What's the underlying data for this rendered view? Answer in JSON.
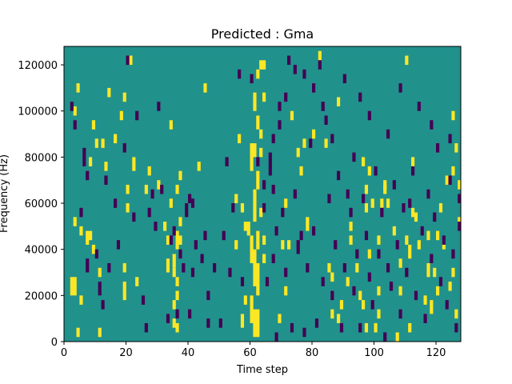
{
  "chart_data": {
    "type": "heatmap",
    "title": "Predicted : Gma",
    "xlabel": "Time step",
    "ylabel": "Frequency (Hz)",
    "xlim": [
      0,
      128
    ],
    "ylim": [
      0,
      128000
    ],
    "xticks": [
      0,
      20,
      40,
      60,
      80,
      100,
      120
    ],
    "yticks": [
      0,
      20000,
      40000,
      60000,
      80000,
      100000,
      120000
    ],
    "xtick_labels": [
      "0",
      "20",
      "40",
      "60",
      "80",
      "100",
      "120"
    ],
    "ytick_labels": [
      "0",
      "20000",
      "40000",
      "60000",
      "80000",
      "100000",
      "120000"
    ],
    "grid": false,
    "colors": {
      "background": "#21918c",
      "high": "#fde725",
      "low": "#440154"
    },
    "cell_width": 1,
    "cell_height": 2000,
    "high_cells": [
      [
        61,
        2000,
        14000
      ],
      [
        62,
        2000,
        14000
      ],
      [
        60,
        8000,
        20000
      ],
      [
        62,
        20000,
        34000
      ],
      [
        61,
        24000,
        40000
      ],
      [
        60,
        34000,
        46000
      ],
      [
        62,
        40000,
        48000
      ],
      [
        59,
        46000,
        52000
      ],
      [
        61,
        52000,
        66000
      ],
      [
        62,
        66000,
        74000
      ],
      [
        60,
        74000,
        86000
      ],
      [
        61,
        80000,
        86000
      ],
      [
        62,
        92000,
        98000
      ],
      [
        61,
        100000,
        108000
      ],
      [
        62,
        114000,
        118000
      ],
      [
        4,
        2000,
        6000
      ],
      [
        2,
        20000,
        28000
      ],
      [
        3,
        20000,
        28000
      ],
      [
        5,
        16000,
        20000
      ],
      [
        11,
        2000,
        6000
      ],
      [
        11,
        28000,
        32000
      ],
      [
        9,
        38000,
        42000
      ],
      [
        7,
        42000,
        48000
      ],
      [
        3,
        50000,
        54000
      ],
      [
        5,
        46000,
        50000
      ],
      [
        8,
        44000,
        48000
      ],
      [
        10,
        84000,
        88000
      ],
      [
        12,
        84000,
        88000
      ],
      [
        8,
        76000,
        80000
      ],
      [
        9,
        92000,
        96000
      ],
      [
        13,
        74000,
        78000
      ],
      [
        18,
        96000,
        100000
      ],
      [
        19,
        104000,
        108000
      ],
      [
        16,
        86000,
        90000
      ],
      [
        4,
        108000,
        112000
      ],
      [
        3,
        98000,
        102000
      ],
      [
        14,
        106000,
        110000
      ],
      [
        19,
        18000,
        26000
      ],
      [
        19,
        30000,
        34000
      ],
      [
        20,
        56000,
        60000
      ],
      [
        20,
        64000,
        68000
      ],
      [
        21,
        120000,
        124000
      ],
      [
        22,
        74000,
        80000
      ],
      [
        23,
        24000,
        28000
      ],
      [
        26,
        64000,
        68000
      ],
      [
        27,
        72000,
        76000
      ],
      [
        30,
        66000,
        70000
      ],
      [
        32,
        48000,
        52000
      ],
      [
        33,
        30000,
        36000
      ],
      [
        33,
        42000,
        46000
      ],
      [
        34,
        58000,
        62000
      ],
      [
        34,
        92000,
        96000
      ],
      [
        35,
        6000,
        10000
      ],
      [
        35,
        14000,
        18000
      ],
      [
        36,
        4000,
        8000
      ],
      [
        36,
        18000,
        22000
      ],
      [
        35,
        28000,
        32000
      ],
      [
        35,
        32000,
        38000
      ],
      [
        36,
        24000,
        28000
      ],
      [
        36,
        40000,
        48000
      ],
      [
        37,
        42000,
        46000
      ],
      [
        36,
        64000,
        68000
      ],
      [
        37,
        70000,
        74000
      ],
      [
        37,
        50000,
        54000
      ],
      [
        43,
        74000,
        78000
      ],
      [
        45,
        108000,
        112000
      ],
      [
        55,
        40000,
        44000
      ],
      [
        55,
        60000,
        64000
      ],
      [
        56,
        86000,
        90000
      ],
      [
        57,
        56000,
        60000
      ],
      [
        58,
        48000,
        52000
      ],
      [
        57,
        6000,
        12000
      ],
      [
        58,
        16000,
        20000
      ],
      [
        63,
        54000,
        58000
      ],
      [
        63,
        80000,
        84000
      ],
      [
        63,
        88000,
        92000
      ],
      [
        64,
        34000,
        38000
      ],
      [
        64,
        42000,
        46000
      ],
      [
        64,
        104000,
        108000
      ],
      [
        63,
        118000,
        122000
      ],
      [
        64,
        118000,
        122000
      ],
      [
        69,
        8000,
        12000
      ],
      [
        70,
        40000,
        44000
      ],
      [
        71,
        58000,
        62000
      ],
      [
        71,
        20000,
        24000
      ],
      [
        72,
        40000,
        44000
      ],
      [
        73,
        96000,
        100000
      ],
      [
        75,
        80000,
        84000
      ],
      [
        76,
        72000,
        76000
      ],
      [
        77,
        84000,
        88000
      ],
      [
        78,
        48000,
        54000
      ],
      [
        80,
        88000,
        92000
      ],
      [
        82,
        122000,
        126000
      ],
      [
        84,
        84000,
        88000
      ],
      [
        86,
        10000,
        14000
      ],
      [
        88,
        102000,
        106000
      ],
      [
        85,
        30000,
        34000
      ],
      [
        86,
        26000,
        30000
      ],
      [
        88,
        8000,
        12000
      ],
      [
        91,
        24000,
        28000
      ],
      [
        92,
        48000,
        52000
      ],
      [
        94,
        30000,
        34000
      ],
      [
        95,
        18000,
        22000
      ],
      [
        96,
        14000,
        18000
      ],
      [
        97,
        56000,
        60000
      ],
      [
        97,
        64000,
        68000
      ],
      [
        96,
        76000,
        80000
      ],
      [
        98,
        72000,
        76000
      ],
      [
        99,
        58000,
        62000
      ],
      [
        100,
        4000,
        8000
      ],
      [
        101,
        10000,
        14000
      ],
      [
        101,
        42000,
        46000
      ],
      [
        103,
        66000,
        70000
      ],
      [
        103,
        64000,
        68000
      ],
      [
        104,
        58000,
        62000
      ],
      [
        106,
        46000,
        50000
      ],
      [
        107,
        0,
        4000
      ],
      [
        108,
        32000,
        36000
      ],
      [
        108,
        20000,
        24000
      ],
      [
        110,
        42000,
        46000
      ],
      [
        111,
        36000,
        42000
      ],
      [
        110,
        120000,
        124000
      ],
      [
        111,
        4000,
        8000
      ],
      [
        112,
        76000,
        80000
      ],
      [
        112,
        54000,
        58000
      ],
      [
        114,
        40000,
        44000
      ],
      [
        116,
        16000,
        20000
      ],
      [
        117,
        28000,
        34000
      ],
      [
        117,
        44000,
        48000
      ],
      [
        118,
        12000,
        18000
      ],
      [
        119,
        28000,
        32000
      ],
      [
        120,
        20000,
        24000
      ],
      [
        121,
        56000,
        60000
      ],
      [
        123,
        68000,
        72000
      ],
      [
        124,
        22000,
        26000
      ],
      [
        125,
        28000,
        32000
      ],
      [
        125,
        96000,
        100000
      ],
      [
        126,
        82000,
        86000
      ],
      [
        126,
        10000,
        14000
      ],
      [
        127,
        66000,
        70000
      ],
      [
        127,
        50000,
        54000
      ],
      [
        120,
        44000,
        48000
      ],
      [
        122,
        40000,
        44000
      ],
      [
        113,
        52000,
        56000
      ],
      [
        102,
        58000,
        62000
      ],
      [
        98,
        36000,
        40000
      ],
      [
        97,
        4000,
        8000
      ],
      [
        92,
        42000,
        46000
      ],
      [
        89,
        14000,
        18000
      ],
      [
        101,
        20000,
        24000
      ],
      [
        125,
        72000,
        76000
      ]
    ],
    "low_cells": [
      [
        2,
        100000,
        104000
      ],
      [
        3,
        92000,
        96000
      ],
      [
        5,
        54000,
        58000
      ],
      [
        6,
        76000,
        84000
      ],
      [
        7,
        70000,
        74000
      ],
      [
        7,
        30000,
        36000
      ],
      [
        10,
        36000,
        40000
      ],
      [
        11,
        20000,
        26000
      ],
      [
        12,
        14000,
        18000
      ],
      [
        13,
        68000,
        72000
      ],
      [
        14,
        30000,
        34000
      ],
      [
        16,
        58000,
        62000
      ],
      [
        17,
        40000,
        44000
      ],
      [
        19,
        82000,
        86000
      ],
      [
        20,
        120000,
        124000
      ],
      [
        22,
        52000,
        56000
      ],
      [
        23,
        96000,
        100000
      ],
      [
        25,
        16000,
        20000
      ],
      [
        26,
        4000,
        8000
      ],
      [
        27,
        54000,
        58000
      ],
      [
        28,
        62000,
        66000
      ],
      [
        29,
        48000,
        52000
      ],
      [
        30,
        100000,
        104000
      ],
      [
        31,
        64000,
        68000
      ],
      [
        33,
        8000,
        12000
      ],
      [
        34,
        42000,
        46000
      ],
      [
        35,
        46000,
        50000
      ],
      [
        36,
        10000,
        14000
      ],
      [
        37,
        36000,
        40000
      ],
      [
        38,
        30000,
        34000
      ],
      [
        39,
        54000,
        60000
      ],
      [
        40,
        60000,
        64000
      ],
      [
        40,
        10000,
        14000
      ],
      [
        41,
        58000,
        62000
      ],
      [
        41,
        28000,
        32000
      ],
      [
        42,
        40000,
        44000
      ],
      [
        44,
        34000,
        38000
      ],
      [
        45,
        44000,
        48000
      ],
      [
        46,
        6000,
        10000
      ],
      [
        46,
        18000,
        22000
      ],
      [
        48,
        30000,
        34000
      ],
      [
        50,
        6000,
        10000
      ],
      [
        51,
        44000,
        48000
      ],
      [
        52,
        76000,
        80000
      ],
      [
        53,
        28000,
        32000
      ],
      [
        54,
        56000,
        60000
      ],
      [
        56,
        114000,
        118000
      ],
      [
        57,
        24000,
        28000
      ],
      [
        60,
        112000,
        116000
      ],
      [
        62,
        76000,
        80000
      ],
      [
        64,
        56000,
        60000
      ],
      [
        65,
        24000,
        28000
      ],
      [
        66,
        72000,
        78000
      ],
      [
        67,
        34000,
        38000
      ],
      [
        67,
        64000,
        68000
      ],
      [
        68,
        46000,
        50000
      ],
      [
        68,
        0,
        4000
      ],
      [
        69,
        100000,
        104000
      ],
      [
        70,
        54000,
        58000
      ],
      [
        71,
        28000,
        32000
      ],
      [
        72,
        120000,
        124000
      ],
      [
        73,
        4000,
        8000
      ],
      [
        74,
        62000,
        66000
      ],
      [
        75,
        38000,
        44000
      ],
      [
        76,
        44000,
        48000
      ],
      [
        77,
        2000,
        6000
      ],
      [
        78,
        30000,
        34000
      ],
      [
        79,
        84000,
        88000
      ],
      [
        80,
        46000,
        50000
      ],
      [
        81,
        6000,
        10000
      ],
      [
        82,
        118000,
        122000
      ],
      [
        83,
        24000,
        28000
      ],
      [
        84,
        94000,
        98000
      ],
      [
        85,
        60000,
        64000
      ],
      [
        86,
        18000,
        22000
      ],
      [
        87,
        40000,
        44000
      ],
      [
        88,
        70000,
        74000
      ],
      [
        89,
        4000,
        8000
      ],
      [
        90,
        30000,
        34000
      ],
      [
        91,
        62000,
        66000
      ],
      [
        92,
        54000,
        58000
      ],
      [
        93,
        20000,
        24000
      ],
      [
        94,
        36000,
        40000
      ],
      [
        95,
        4000,
        8000
      ],
      [
        96,
        60000,
        64000
      ],
      [
        97,
        44000,
        48000
      ],
      [
        98,
        26000,
        30000
      ],
      [
        99,
        14000,
        18000
      ],
      [
        100,
        72000,
        76000
      ],
      [
        101,
        36000,
        40000
      ],
      [
        102,
        54000,
        58000
      ],
      [
        103,
        0,
        4000
      ],
      [
        104,
        30000,
        34000
      ],
      [
        105,
        22000,
        26000
      ],
      [
        106,
        66000,
        70000
      ],
      [
        107,
        40000,
        44000
      ],
      [
        108,
        10000,
        14000
      ],
      [
        109,
        56000,
        60000
      ],
      [
        110,
        28000,
        32000
      ],
      [
        111,
        58000,
        62000
      ],
      [
        113,
        18000,
        22000
      ],
      [
        114,
        100000,
        104000
      ],
      [
        115,
        46000,
        50000
      ],
      [
        116,
        8000,
        12000
      ],
      [
        117,
        62000,
        66000
      ],
      [
        118,
        34000,
        38000
      ],
      [
        119,
        52000,
        56000
      ],
      [
        120,
        82000,
        86000
      ],
      [
        121,
        24000,
        28000
      ],
      [
        122,
        42000,
        46000
      ],
      [
        123,
        14000,
        18000
      ],
      [
        124,
        68000,
        72000
      ],
      [
        125,
        36000,
        40000
      ],
      [
        126,
        4000,
        8000
      ],
      [
        127,
        60000,
        64000
      ],
      [
        127,
        48000,
        52000
      ],
      [
        124,
        86000,
        90000
      ],
      [
        118,
        92000,
        96000
      ],
      [
        112,
        72000,
        76000
      ],
      [
        108,
        108000,
        112000
      ],
      [
        104,
        88000,
        92000
      ],
      [
        98,
        96000,
        100000
      ],
      [
        95,
        104000,
        108000
      ],
      [
        93,
        78000,
        82000
      ],
      [
        90,
        112000,
        116000
      ],
      [
        86,
        86000,
        90000
      ],
      [
        83,
        100000,
        104000
      ],
      [
        80,
        108000,
        112000
      ],
      [
        77,
        114000,
        118000
      ],
      [
        74,
        116000,
        120000
      ],
      [
        71,
        104000,
        108000
      ],
      [
        69,
        92000,
        96000
      ],
      [
        67,
        86000,
        90000
      ],
      [
        66,
        78000,
        82000
      ],
      [
        64,
        66000,
        70000
      ]
    ]
  }
}
